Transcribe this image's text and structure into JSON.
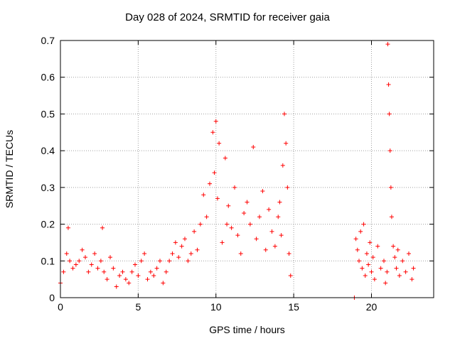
{
  "chart_data": {
    "type": "scatter",
    "title": "Day 028 of 2024, SRMTID for receiver gaia",
    "xlabel": "GPS time / hours",
    "ylabel": "SRMTID / TECUs",
    "xlim": [
      0,
      24
    ],
    "ylim": [
      0,
      0.7
    ],
    "xticks": [
      0,
      5,
      10,
      15,
      20
    ],
    "yticks": [
      0,
      0.1,
      0.2,
      0.3,
      0.4,
      0.5,
      0.6,
      0.7
    ],
    "xtick_labels": [
      "0",
      "5",
      "10",
      "15",
      "20"
    ],
    "ytick_labels": [
      "0",
      "0.1",
      "0.2",
      "0.3",
      "0.4",
      "0.5",
      "0.6",
      "0.7"
    ],
    "grid": true,
    "marker": "+",
    "color": "#ff0000",
    "series": [
      {
        "name": "SRMTID",
        "x": [
          0.0,
          0.2,
          0.4,
          0.5,
          0.6,
          0.8,
          1.0,
          1.2,
          1.4,
          1.6,
          1.8,
          2.0,
          2.2,
          2.4,
          2.6,
          2.7,
          2.8,
          3.0,
          3.2,
          3.4,
          3.6,
          3.8,
          4.0,
          4.2,
          4.4,
          4.6,
          4.8,
          5.0,
          5.2,
          5.4,
          5.6,
          5.8,
          6.0,
          6.2,
          6.4,
          6.6,
          6.8,
          7.0,
          7.2,
          7.4,
          7.6,
          7.8,
          8.0,
          8.2,
          8.4,
          8.6,
          8.8,
          9.0,
          9.2,
          9.4,
          9.6,
          9.8,
          9.9,
          10.0,
          10.1,
          10.2,
          10.4,
          10.6,
          10.7,
          10.8,
          11.0,
          11.2,
          11.4,
          11.6,
          11.8,
          12.0,
          12.2,
          12.4,
          12.6,
          12.8,
          13.0,
          13.2,
          13.4,
          13.6,
          13.8,
          14.0,
          14.1,
          14.2,
          14.3,
          14.4,
          14.5,
          14.6,
          14.7,
          14.8,
          18.9,
          19.0,
          19.1,
          19.2,
          19.3,
          19.4,
          19.5,
          19.6,
          19.7,
          19.8,
          19.9,
          20.0,
          20.1,
          20.2,
          20.4,
          20.6,
          20.8,
          20.9,
          21.0,
          21.05,
          21.1,
          21.15,
          21.2,
          21.25,
          21.3,
          21.4,
          21.5,
          21.6,
          21.7,
          21.8,
          22.0,
          22.2,
          22.4,
          22.6,
          22.7
        ],
        "y": [
          0.04,
          0.07,
          0.12,
          0.19,
          0.1,
          0.08,
          0.09,
          0.1,
          0.13,
          0.11,
          0.07,
          0.09,
          0.12,
          0.08,
          0.1,
          0.19,
          0.07,
          0.05,
          0.11,
          0.08,
          0.03,
          0.06,
          0.07,
          0.05,
          0.04,
          0.07,
          0.09,
          0.06,
          0.1,
          0.12,
          0.05,
          0.07,
          0.06,
          0.08,
          0.1,
          0.04,
          0.07,
          0.1,
          0.12,
          0.15,
          0.11,
          0.14,
          0.16,
          0.1,
          0.12,
          0.18,
          0.13,
          0.2,
          0.28,
          0.22,
          0.31,
          0.45,
          0.34,
          0.48,
          0.27,
          0.42,
          0.15,
          0.38,
          0.2,
          0.25,
          0.19,
          0.3,
          0.17,
          0.12,
          0.23,
          0.26,
          0.2,
          0.41,
          0.16,
          0.22,
          0.29,
          0.13,
          0.24,
          0.18,
          0.14,
          0.22,
          0.26,
          0.17,
          0.36,
          0.5,
          0.42,
          0.3,
          0.12,
          0.06,
          0.0,
          0.16,
          0.13,
          0.1,
          0.18,
          0.08,
          0.2,
          0.06,
          0.12,
          0.09,
          0.15,
          0.07,
          0.11,
          0.05,
          0.14,
          0.08,
          0.1,
          0.04,
          0.07,
          0.69,
          0.58,
          0.5,
          0.4,
          0.3,
          0.22,
          0.14,
          0.11,
          0.08,
          0.13,
          0.06,
          0.1,
          0.07,
          0.12,
          0.05,
          0.08
        ]
      }
    ]
  }
}
